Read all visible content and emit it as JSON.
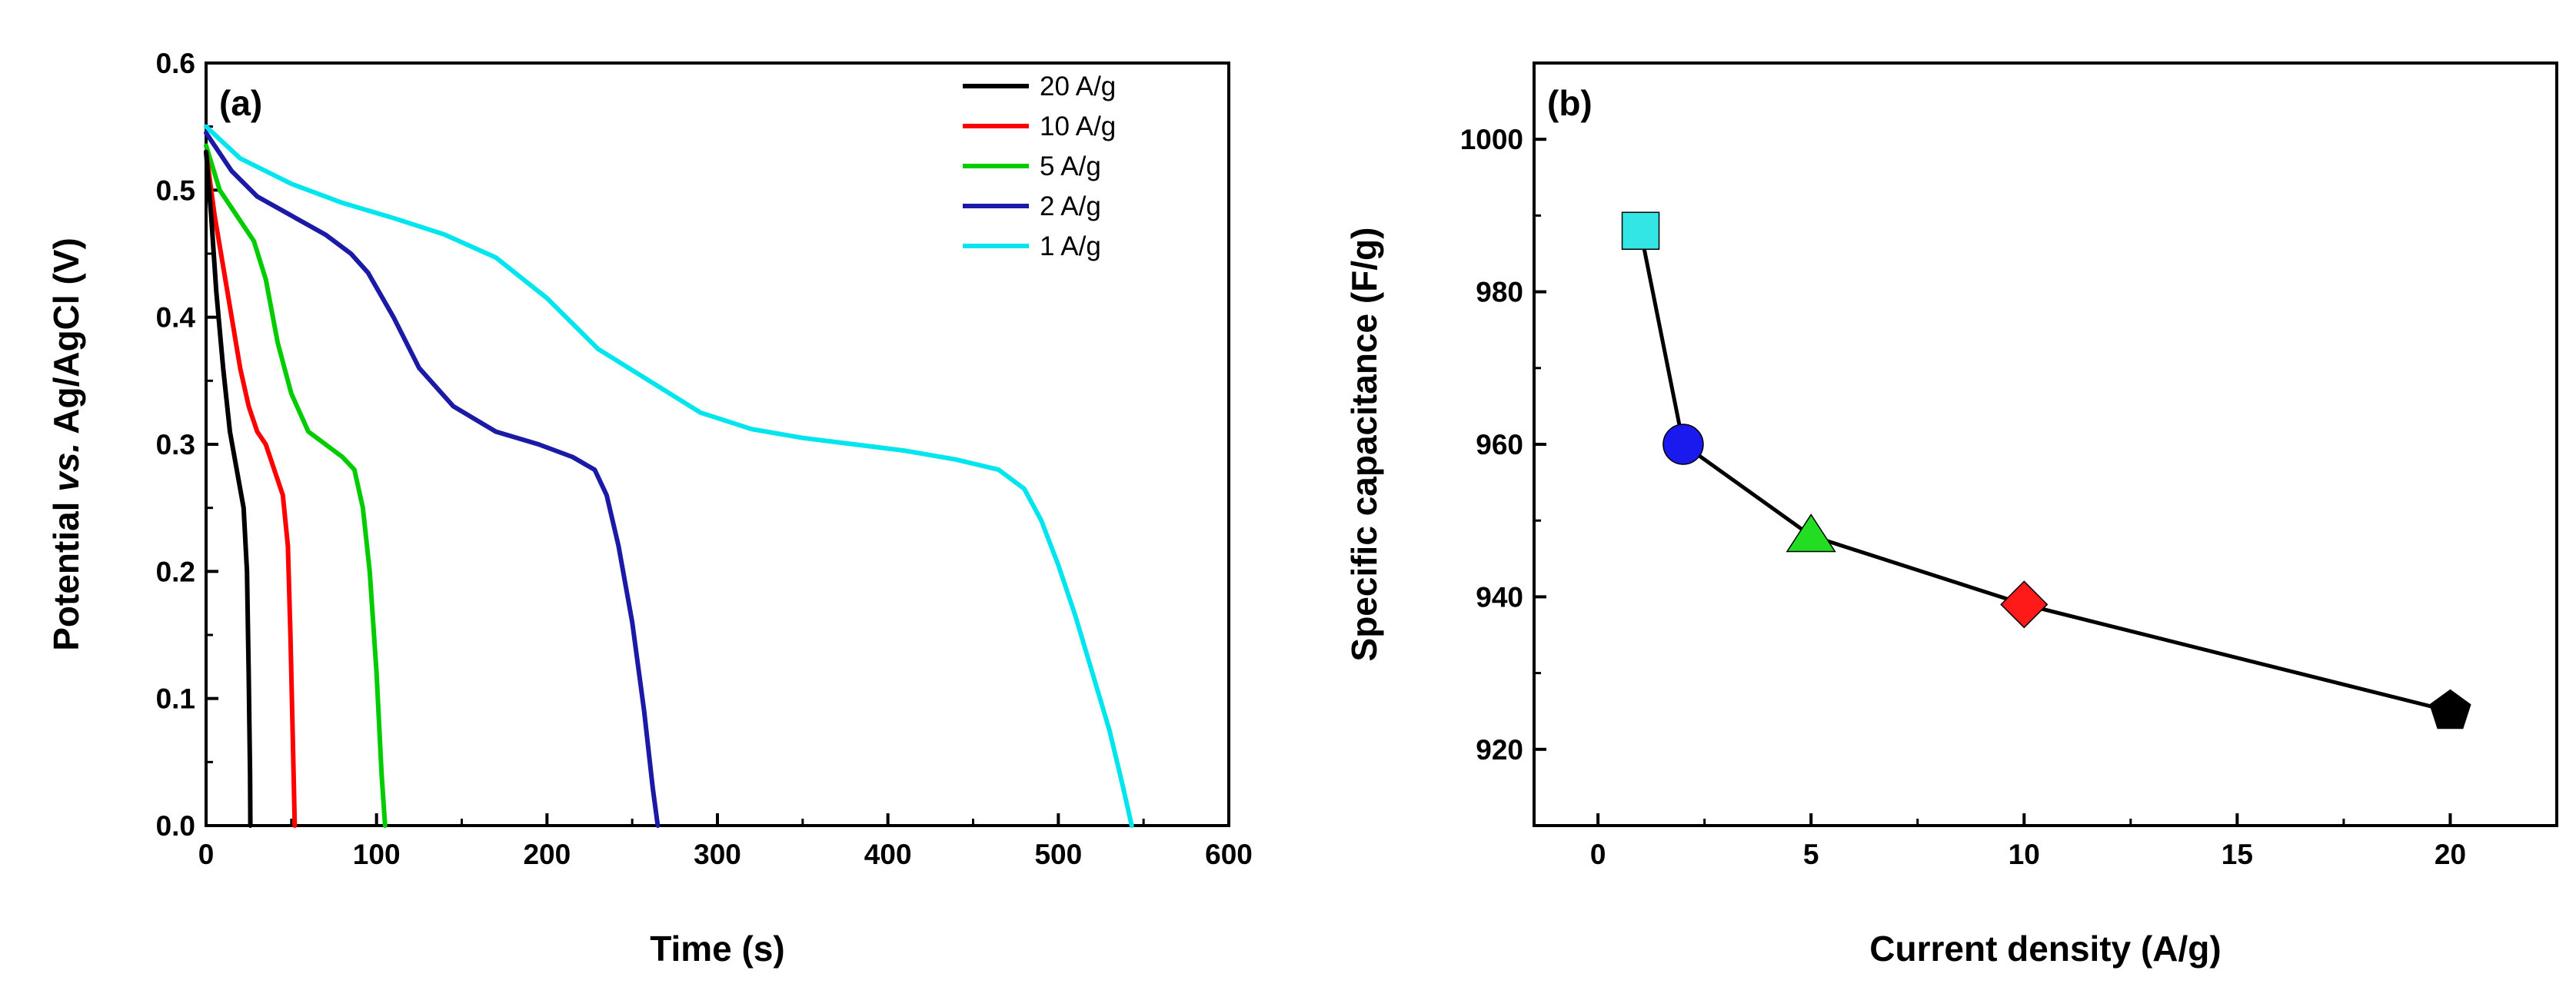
{
  "chart_data": [
    {
      "type": "line",
      "panel_label": "(a)",
      "xlabel": "Time (s)",
      "ylabel_parts": [
        "Potential ",
        "vs.",
        " Ag/AgCl (V)"
      ],
      "xlim": [
        0,
        600
      ],
      "ylim": [
        0,
        0.6
      ],
      "xticks": [
        "0",
        "100",
        "200",
        "300",
        "400",
        "500",
        "600"
      ],
      "yticks": [
        "0.0",
        "0.1",
        "0.2",
        "0.3",
        "0.4",
        "0.5",
        "0.6"
      ],
      "legend_position": "top-right",
      "series": [
        {
          "name": "20 A/g",
          "color": "#000000",
          "x": [
            0,
            3,
            6,
            10,
            14,
            18,
            22,
            24,
            25,
            25.8,
            26
          ],
          "y": [
            0.53,
            0.48,
            0.42,
            0.36,
            0.31,
            0.28,
            0.25,
            0.2,
            0.12,
            0.04,
            0
          ]
        },
        {
          "name": "10 A/g",
          "color": "#ff0000",
          "x": [
            0,
            5,
            10,
            15,
            20,
            25,
            30,
            35,
            40,
            45,
            48,
            49.5,
            51,
            52
          ],
          "y": [
            0.53,
            0.48,
            0.44,
            0.4,
            0.36,
            0.33,
            0.31,
            0.3,
            0.28,
            0.26,
            0.22,
            0.15,
            0.06,
            0
          ]
        },
        {
          "name": "5 A/g",
          "color": "#00cc00",
          "x": [
            0,
            8,
            18,
            28,
            35,
            42,
            50,
            60,
            70,
            80,
            87,
            92,
            96,
            100,
            103,
            105
          ],
          "y": [
            0.535,
            0.5,
            0.48,
            0.46,
            0.43,
            0.38,
            0.34,
            0.31,
            0.3,
            0.29,
            0.28,
            0.25,
            0.2,
            0.12,
            0.04,
            0
          ]
        },
        {
          "name": "2 A/g",
          "color": "#1a1aa6",
          "x": [
            0,
            15,
            30,
            50,
            70,
            85,
            95,
            110,
            125,
            145,
            170,
            195,
            215,
            228,
            235,
            242,
            250,
            257,
            262,
            265
          ],
          "y": [
            0.545,
            0.515,
            0.495,
            0.48,
            0.465,
            0.45,
            0.435,
            0.4,
            0.36,
            0.33,
            0.31,
            0.3,
            0.29,
            0.28,
            0.26,
            0.22,
            0.16,
            0.09,
            0.03,
            0
          ]
        },
        {
          "name": "1 A/g",
          "color": "#00e5ee",
          "x": [
            0,
            20,
            50,
            80,
            110,
            140,
            170,
            200,
            230,
            260,
            290,
            320,
            350,
            380,
            410,
            440,
            465,
            480,
            490,
            500,
            510,
            520,
            530,
            538,
            543
          ],
          "y": [
            0.55,
            0.525,
            0.505,
            0.49,
            0.478,
            0.465,
            0.447,
            0.415,
            0.375,
            0.35,
            0.325,
            0.312,
            0.305,
            0.3,
            0.295,
            0.288,
            0.28,
            0.265,
            0.24,
            0.205,
            0.165,
            0.12,
            0.075,
            0.03,
            0
          ]
        }
      ]
    },
    {
      "type": "scatter",
      "panel_label": "(b)",
      "xlabel": "Current density (A/g)",
      "ylabel": "Specific capacitance (F/g)",
      "xlim": [
        -1.5,
        22.5
      ],
      "ylim": [
        910,
        1010
      ],
      "xticks": [
        "0",
        "5",
        "10",
        "15",
        "20"
      ],
      "yticks": [
        "920",
        "940",
        "960",
        "980",
        "1000"
      ],
      "x": [
        1,
        2,
        5,
        10,
        20
      ],
      "y": [
        988,
        960,
        948,
        939,
        925
      ],
      "markers": [
        "square",
        "circle",
        "triangle",
        "diamond",
        "pentagon"
      ],
      "marker_colors": [
        "#33e6e6",
        "#1a1aee",
        "#22dd22",
        "#ff1a1a",
        "#000000"
      ],
      "line_color": "#000000"
    }
  ]
}
